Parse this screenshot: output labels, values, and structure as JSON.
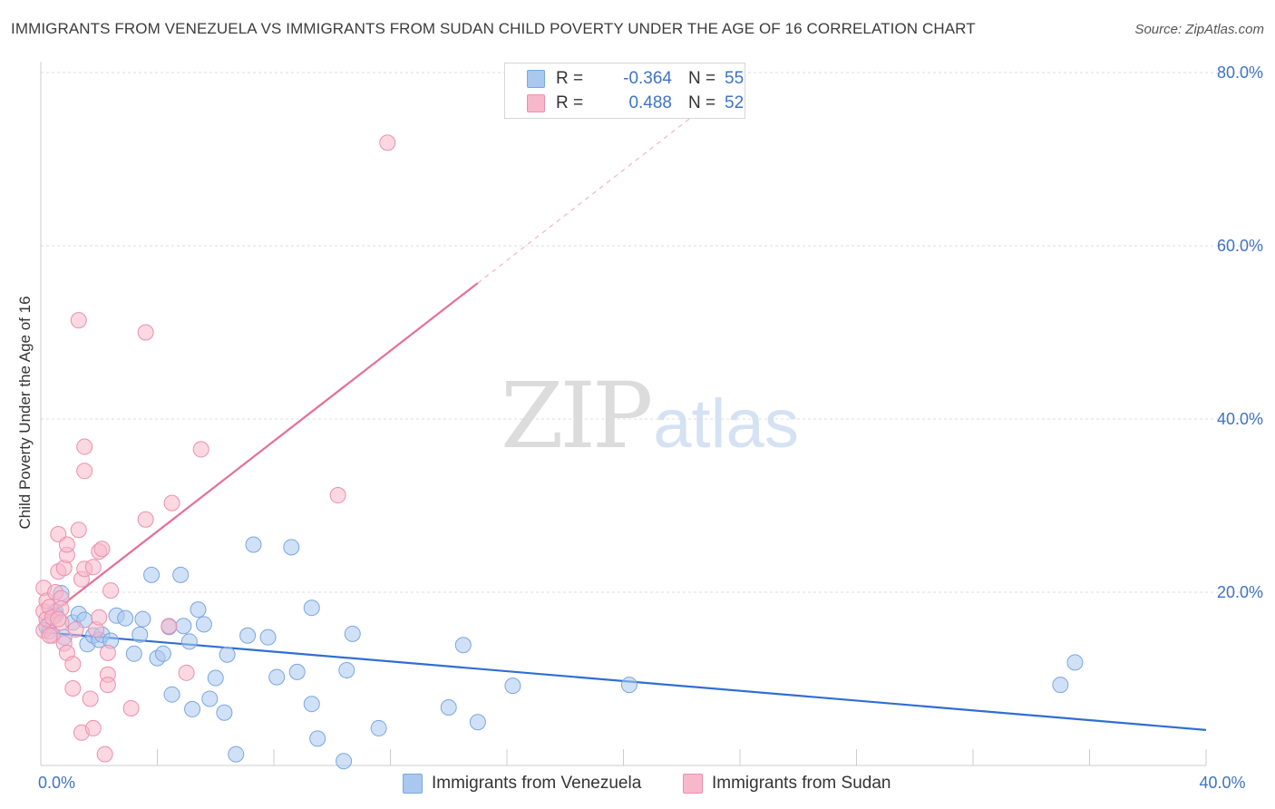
{
  "header": {
    "title": "IMMIGRANTS FROM VENEZUELA VS IMMIGRANTS FROM SUDAN CHILD POVERTY UNDER THE AGE OF 16 CORRELATION CHART",
    "source": "Source: ZipAtlas.com"
  },
  "watermark": {
    "zip": "ZIP",
    "atlas": "atlas"
  },
  "stats": {
    "rows": [
      {
        "r_label": "R =",
        "r_value": "-0.364",
        "n_label": "N =",
        "n_value": "55",
        "color": "#a9c8f0"
      },
      {
        "r_label": "R =",
        "r_value": "0.488",
        "n_label": "N =",
        "n_value": "52",
        "color": "#f7b8cb"
      }
    ]
  },
  "legend": {
    "items": [
      {
        "label": "Immigrants from Venezuela",
        "color": "#a9c8f0"
      },
      {
        "label": "Immigrants from Sudan",
        "color": "#f7b8cb"
      }
    ]
  },
  "chart_data": {
    "type": "scatter",
    "title": "IMMIGRANTS FROM VENEZUELA VS IMMIGRANTS FROM SUDAN CHILD POVERTY UNDER THE AGE OF 16 CORRELATION CHART",
    "xlabel": "",
    "ylabel": "Child Poverty Under the Age of 16",
    "xlim": [
      0,
      40
    ],
    "ylim": [
      0,
      80
    ],
    "x_tick_labels": [
      {
        "value": 0,
        "label": "0.0%"
      },
      {
        "value": 40,
        "label": "40.0%"
      }
    ],
    "y_tick_labels": [
      {
        "value": 20,
        "label": "20.0%"
      },
      {
        "value": 40,
        "label": "40.0%"
      },
      {
        "value": 60,
        "label": "60.0%"
      },
      {
        "value": 80,
        "label": "80.0%"
      }
    ],
    "x_minor_ticks": [
      0,
      4,
      8,
      12,
      16,
      20,
      24,
      28,
      32,
      36,
      40
    ],
    "series": [
      {
        "name": "Immigrants from Venezuela",
        "color": "#a9c8f0",
        "stroke": "#7aa6e0",
        "trend": {
          "x": [
            0,
            40
          ],
          "y": [
            15.4,
            4.1
          ],
          "color": "#2f6fd0",
          "dashed_extension": false
        },
        "points": [
          [
            0.2,
            16.0
          ],
          [
            0.3,
            15.5
          ],
          [
            0.5,
            17.8
          ],
          [
            0.5,
            17.3
          ],
          [
            0.7,
            19.9
          ],
          [
            0.8,
            14.8
          ],
          [
            1.1,
            16.5
          ],
          [
            1.3,
            17.5
          ],
          [
            1.5,
            16.8
          ],
          [
            1.6,
            14.0
          ],
          [
            1.8,
            15.0
          ],
          [
            2.0,
            14.5
          ],
          [
            2.1,
            15.1
          ],
          [
            2.4,
            14.4
          ],
          [
            2.6,
            17.3
          ],
          [
            2.9,
            17.0
          ],
          [
            3.2,
            12.9
          ],
          [
            3.4,
            15.1
          ],
          [
            3.5,
            16.9
          ],
          [
            3.8,
            22.0
          ],
          [
            4.0,
            12.4
          ],
          [
            4.2,
            12.9
          ],
          [
            4.4,
            16.0
          ],
          [
            4.5,
            8.2
          ],
          [
            4.8,
            22.0
          ],
          [
            4.9,
            16.1
          ],
          [
            5.1,
            14.3
          ],
          [
            5.2,
            6.5
          ],
          [
            5.4,
            18.0
          ],
          [
            5.6,
            16.3
          ],
          [
            5.8,
            7.7
          ],
          [
            6.0,
            10.1
          ],
          [
            6.3,
            6.1
          ],
          [
            6.4,
            12.8
          ],
          [
            6.7,
            1.3
          ],
          [
            7.1,
            15.0
          ],
          [
            7.3,
            25.5
          ],
          [
            7.8,
            14.8
          ],
          [
            8.1,
            10.2
          ],
          [
            8.6,
            25.2
          ],
          [
            8.8,
            10.8
          ],
          [
            9.3,
            18.2
          ],
          [
            9.3,
            7.1
          ],
          [
            9.5,
            3.1
          ],
          [
            10.4,
            0.5
          ],
          [
            10.5,
            11.0
          ],
          [
            10.7,
            15.2
          ],
          [
            11.6,
            4.3
          ],
          [
            14.0,
            6.7
          ],
          [
            14.5,
            13.9
          ],
          [
            15.0,
            5.0
          ],
          [
            16.2,
            9.2
          ],
          [
            20.2,
            9.3
          ],
          [
            35.0,
            9.3
          ],
          [
            35.5,
            11.9
          ]
        ]
      },
      {
        "name": "Immigrants from Sudan",
        "color": "#f7b8cb",
        "stroke": "#ec8fae",
        "trend": {
          "x": [
            0,
            15
          ],
          "y": [
            16.6,
            55.7
          ],
          "dashed_to": [
            23.2,
            77.1
          ],
          "color": "#e56f96",
          "dashed_extension": true
        },
        "points": [
          [
            0.1,
            20.5
          ],
          [
            0.1,
            17.8
          ],
          [
            0.1,
            15.6
          ],
          [
            0.2,
            19.0
          ],
          [
            0.2,
            16.9
          ],
          [
            0.3,
            18.3
          ],
          [
            0.4,
            17.1
          ],
          [
            0.4,
            15.0
          ],
          [
            0.5,
            20.0
          ],
          [
            0.6,
            26.7
          ],
          [
            0.6,
            22.4
          ],
          [
            0.7,
            19.3
          ],
          [
            0.7,
            18.1
          ],
          [
            0.7,
            16.5
          ],
          [
            0.8,
            22.8
          ],
          [
            0.8,
            14.1
          ],
          [
            0.9,
            13.0
          ],
          [
            0.9,
            24.3
          ],
          [
            0.9,
            25.5
          ],
          [
            1.1,
            11.7
          ],
          [
            1.1,
            8.9
          ],
          [
            1.2,
            15.7
          ],
          [
            1.3,
            27.2
          ],
          [
            1.3,
            51.4
          ],
          [
            1.4,
            21.5
          ],
          [
            1.4,
            3.8
          ],
          [
            1.5,
            22.7
          ],
          [
            1.5,
            34.0
          ],
          [
            1.5,
            36.8
          ],
          [
            1.7,
            7.7
          ],
          [
            1.8,
            22.9
          ],
          [
            1.8,
            4.3
          ],
          [
            1.9,
            15.7
          ],
          [
            2.0,
            24.7
          ],
          [
            2.0,
            17.1
          ],
          [
            2.1,
            25.0
          ],
          [
            2.2,
            1.3
          ],
          [
            2.3,
            10.5
          ],
          [
            2.3,
            9.3
          ],
          [
            2.3,
            13.0
          ],
          [
            2.4,
            20.2
          ],
          [
            3.1,
            6.6
          ],
          [
            3.6,
            50.0
          ],
          [
            3.6,
            28.4
          ],
          [
            4.4,
            16.1
          ],
          [
            4.5,
            30.3
          ],
          [
            5.0,
            10.7
          ],
          [
            5.5,
            36.5
          ],
          [
            10.2,
            31.2
          ],
          [
            11.9,
            71.9
          ],
          [
            0.3,
            15.0
          ],
          [
            0.6,
            16.9
          ]
        ]
      }
    ],
    "stats": [
      {
        "series": "Immigrants from Venezuela",
        "r": -0.364,
        "n": 55
      },
      {
        "series": "Immigrants from Sudan",
        "r": 0.488,
        "n": 52
      }
    ]
  }
}
